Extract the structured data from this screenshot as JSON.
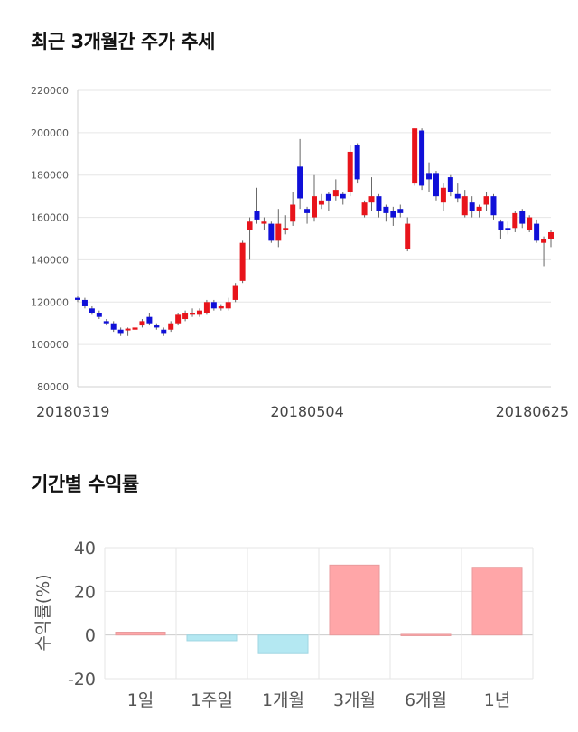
{
  "charts": {
    "price_title": "최근 3개월간 주가 추세",
    "return_title": "기간별 수익률"
  },
  "colors": {
    "up": "#e8141b",
    "down": "#1010d8",
    "positive_bar": "#ffa6a8",
    "negative_bar": "#b4e8f2",
    "grid": "#e6e6e6"
  },
  "chart_data": [
    {
      "type": "candlestick",
      "title": "최근 3개월간 주가 추세",
      "ylim": [
        80000,
        220000
      ],
      "y_ticks": [
        "80000",
        "100000",
        "120000",
        "140000",
        "160000",
        "180000",
        "200000",
        "220000"
      ],
      "x_tick_labels": [
        {
          "label": "20180319",
          "index": 0
        },
        {
          "label": "20180504",
          "index": 32
        },
        {
          "label": "20180625",
          "index": 67
        }
      ],
      "grid": true,
      "candles": [
        [
          122000,
          121000,
          123000,
          120000
        ],
        [
          121000,
          118000,
          122000,
          117000
        ],
        [
          117000,
          115000,
          118000,
          114000
        ],
        [
          115000,
          113000,
          116000,
          112000
        ],
        [
          111000,
          110000,
          112000,
          109000
        ],
        [
          110000,
          107000,
          111000,
          106000
        ],
        [
          107000,
          105000,
          108000,
          104000
        ],
        [
          107000,
          107500,
          108000,
          104000
        ],
        [
          107000,
          108000,
          109000,
          106000
        ],
        [
          109000,
          111000,
          112000,
          108000
        ],
        [
          113000,
          110000,
          115000,
          109000
        ],
        [
          109000,
          108000,
          110000,
          107000
        ],
        [
          107000,
          105000,
          108000,
          104000
        ],
        [
          107000,
          110000,
          111000,
          106000
        ],
        [
          110000,
          114000,
          115000,
          109000
        ],
        [
          112000,
          115000,
          116000,
          111000
        ],
        [
          114000,
          115000,
          117000,
          113000
        ],
        [
          114000,
          116000,
          117000,
          113000
        ],
        [
          115000,
          120000,
          121000,
          114000
        ],
        [
          120000,
          117000,
          121000,
          116000
        ],
        [
          117000,
          118000,
          119000,
          116000
        ],
        [
          117000,
          120000,
          122000,
          116000
        ],
        [
          121000,
          128000,
          129000,
          120000
        ],
        [
          130000,
          148000,
          149000,
          129000
        ],
        [
          154000,
          158000,
          160000,
          140000
        ],
        [
          163000,
          159000,
          174000,
          157000
        ],
        [
          157000,
          158000,
          160000,
          154000
        ],
        [
          157000,
          149000,
          158000,
          148000
        ],
        [
          149000,
          157000,
          164000,
          146000
        ],
        [
          154000,
          155000,
          161000,
          152000
        ],
        [
          158000,
          166000,
          172000,
          156000
        ],
        [
          184000,
          169000,
          197000,
          164000
        ],
        [
          164000,
          162000,
          165000,
          157000
        ],
        [
          160000,
          170000,
          180000,
          158000
        ],
        [
          166000,
          168000,
          171000,
          164000
        ],
        [
          171000,
          168000,
          172000,
          163000
        ],
        [
          170000,
          173000,
          178000,
          168000
        ],
        [
          171000,
          169000,
          172000,
          166000
        ],
        [
          172000,
          191000,
          194000,
          170000
        ],
        [
          194000,
          178000,
          195000,
          176000
        ],
        [
          161000,
          167000,
          168000,
          160000
        ],
        [
          167000,
          170000,
          179000,
          163000
        ],
        [
          170000,
          163000,
          171000,
          160000
        ],
        [
          165000,
          162000,
          166000,
          158000
        ],
        [
          163000,
          160000,
          165000,
          156000
        ],
        [
          164000,
          162000,
          166000,
          160000
        ],
        [
          145000,
          157000,
          160000,
          144000
        ],
        [
          176000,
          202000,
          202000,
          175000
        ],
        [
          201000,
          175000,
          202000,
          173000
        ],
        [
          181000,
          178000,
          186000,
          172000
        ],
        [
          181000,
          170000,
          182000,
          168000
        ],
        [
          167000,
          174000,
          176000,
          163000
        ],
        [
          179000,
          172000,
          180000,
          170000
        ],
        [
          171000,
          169000,
          176000,
          167000
        ],
        [
          161000,
          170000,
          173000,
          160000
        ],
        [
          167000,
          163000,
          170000,
          160000
        ],
        [
          163000,
          165000,
          166000,
          160000
        ],
        [
          166000,
          170000,
          172000,
          163000
        ],
        [
          170000,
          161000,
          171000,
          159000
        ],
        [
          158000,
          154000,
          159000,
          150000
        ],
        [
          155000,
          154000,
          158000,
          152000
        ],
        [
          155000,
          162000,
          163000,
          153000
        ],
        [
          163000,
          157000,
          164000,
          155000
        ],
        [
          154000,
          160000,
          161000,
          153000
        ],
        [
          157000,
          149000,
          159000,
          148000
        ],
        [
          148000,
          150000,
          151000,
          137000
        ],
        [
          150000,
          153000,
          154000,
          146000
        ]
      ],
      "candle_format": [
        "open",
        "close",
        "high",
        "low"
      ]
    },
    {
      "type": "bar",
      "title": "기간별 수익률",
      "ylabel": "수익률(%)",
      "ylim": [
        -20,
        40
      ],
      "y_ticks": [
        "-20",
        "0",
        "20",
        "40"
      ],
      "categories": [
        "1일",
        "1주일",
        "1개월",
        "3개월",
        "6개월",
        "1년"
      ],
      "values": [
        1.3,
        -2.6,
        -8.5,
        32.0,
        0.3,
        31.0
      ],
      "grid": true
    }
  ]
}
